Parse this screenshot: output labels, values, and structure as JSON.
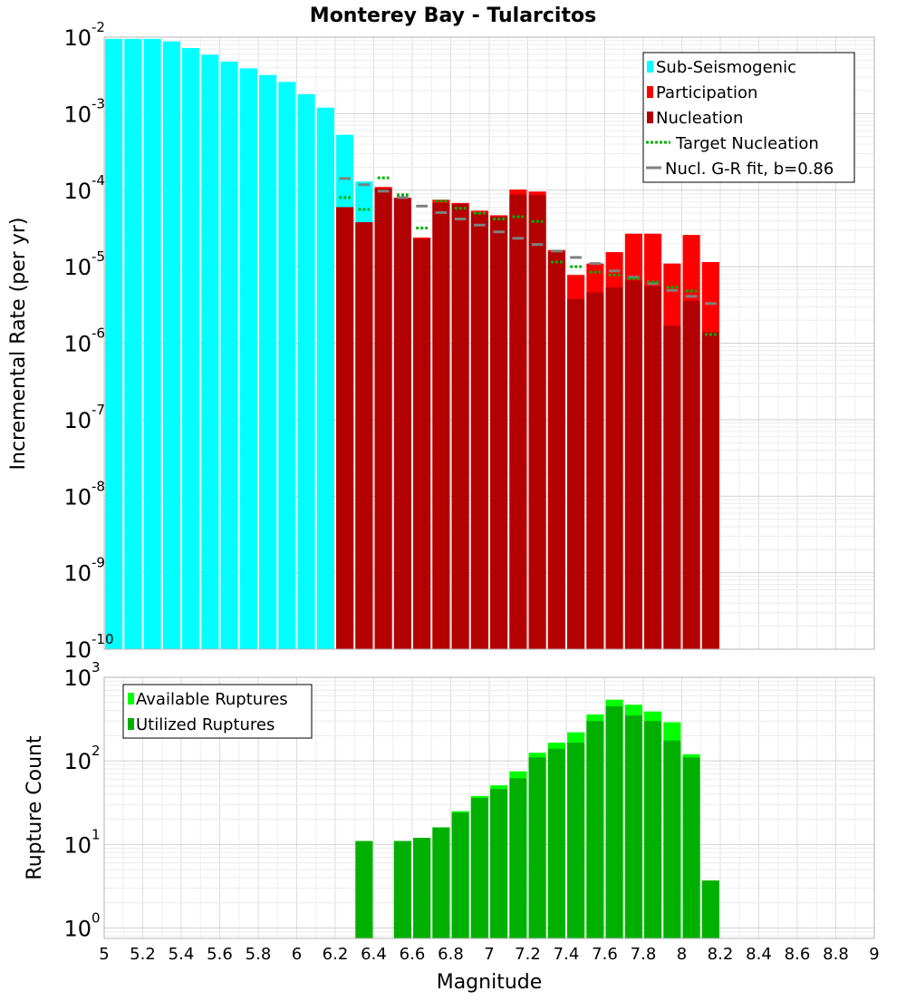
{
  "chart_data": [
    {
      "type": "bar",
      "title": "Monterey Bay - Tularcitos",
      "ylabel": "Incremental Rate (per yr)",
      "xlabel": "",
      "xlim": [
        5,
        9
      ],
      "yscale": "log",
      "ylim": [
        1e-10,
        0.01
      ],
      "bin_width": 0.1,
      "ytick_labels": [
        {
          "base": "10",
          "exp": "-10",
          "value": 1e-10
        },
        {
          "base": "10",
          "exp": "-9",
          "value": 1e-09
        },
        {
          "base": "10",
          "exp": "-8",
          "value": 1e-08
        },
        {
          "base": "10",
          "exp": "-7",
          "value": 1e-07
        },
        {
          "base": "10",
          "exp": "-6",
          "value": 1e-06
        },
        {
          "base": "10",
          "exp": "-5",
          "value": 1e-05
        },
        {
          "base": "10",
          "exp": "-4",
          "value": 0.0001
        },
        {
          "base": "10",
          "exp": "-3",
          "value": 0.001
        },
        {
          "base": "10",
          "exp": "-2",
          "value": 0.01
        }
      ],
      "legend": {
        "placement": "top-right",
        "entries": [
          {
            "label": "Sub-Seismogenic",
            "color": "#00ffff",
            "style": "box"
          },
          {
            "label": "Participation",
            "color": "#ff0000",
            "style": "box"
          },
          {
            "label": "Nucleation",
            "color": "#b30000",
            "style": "box"
          },
          {
            "label": "Target Nucleation",
            "color": "#00b000",
            "style": "dotted"
          },
          {
            "label": "Nucl. G-R fit, b=0.86",
            "color": "#808080",
            "style": "line"
          }
        ]
      },
      "series": [
        {
          "name": "Sub-Seismogenic",
          "color": "#00ffff",
          "x": [
            5.05,
            5.15,
            5.25,
            5.35,
            5.45,
            5.55,
            5.65,
            5.75,
            5.85,
            5.95,
            6.05,
            6.15,
            6.25,
            6.35
          ],
          "values": [
            0.0095,
            0.0095,
            0.0095,
            0.0088,
            0.0072,
            0.0059,
            0.0048,
            0.0039,
            0.0032,
            0.0026,
            0.0018,
            0.0012,
            0.00053,
            0.00013
          ]
        },
        {
          "name": "Participation",
          "color": "#ff0000",
          "x": [
            6.25,
            6.35,
            6.45,
            6.55,
            6.65,
            6.75,
            6.85,
            6.95,
            7.05,
            7.15,
            7.25,
            7.35,
            7.45,
            7.55,
            7.65,
            7.75,
            7.85,
            7.95,
            8.05,
            8.15
          ],
          "values": [
            6e-05,
            3.8e-05,
            0.00011,
            8e-05,
            2.4e-05,
            7.5e-05,
            6.8e-05,
            5.4e-05,
            4.7e-05,
            0.000102,
            9.6e-05,
            1.65e-05,
            7.8e-06,
            1.1e-05,
            1.55e-05,
            2.7e-05,
            2.7e-05,
            1.1e-05,
            2.6e-05,
            1.15e-05
          ]
        },
        {
          "name": "Nucleation",
          "color": "#b30000",
          "x": [
            6.25,
            6.35,
            6.45,
            6.55,
            6.65,
            6.75,
            6.85,
            6.95,
            7.05,
            7.15,
            7.25,
            7.35,
            7.45,
            7.55,
            7.65,
            7.75,
            7.85,
            7.95,
            8.05,
            8.15
          ],
          "values": [
            6e-05,
            3.8e-05,
            0.000105,
            7.8e-05,
            2.3e-05,
            6.8e-05,
            6.6e-05,
            5e-05,
            4.5e-05,
            8.8e-05,
            8.6e-05,
            1.55e-05,
            3.8e-06,
            4.6e-06,
            5.4e-06,
            6.6e-06,
            5.6e-06,
            1.7e-06,
            3.6e-06,
            1.4e-06
          ]
        },
        {
          "name": "Target Nucleation",
          "color": "#00b000",
          "x": [
            6.25,
            6.35,
            6.45,
            6.55,
            6.65,
            6.75,
            6.85,
            6.95,
            7.05,
            7.15,
            7.25,
            7.35,
            7.45,
            7.55,
            7.65,
            7.75,
            7.85,
            7.95,
            8.05,
            8.15
          ],
          "values": [
            8e-05,
            5.6e-05,
            0.000145,
            8.7e-05,
            3.2e-05,
            7.2e-05,
            5.8e-05,
            5e-05,
            4.2e-05,
            4.5e-05,
            3.9e-05,
            1.15e-05,
            1e-05,
            8.5e-06,
            7.8e-06,
            7e-06,
            6.3e-06,
            5.4e-06,
            4.8e-06,
            1.3e-06
          ]
        },
        {
          "name": "Nucl. G-R fit, b=0.86",
          "color": "#808080",
          "x": [
            6.25,
            6.35,
            6.45,
            6.55,
            6.65,
            6.75,
            6.85,
            6.95,
            7.05,
            7.15,
            7.25,
            7.35,
            7.45,
            7.55,
            7.65,
            7.75,
            7.85,
            7.95,
            8.05,
            8.15
          ],
          "values": [
            0.000142,
            0.000118,
            9.7e-05,
            8e-05,
            6.2e-05,
            5.1e-05,
            4.2e-05,
            3.5e-05,
            2.85e-05,
            2.35e-05,
            1.95e-05,
            1.6e-05,
            1.32e-05,
            1.1e-05,
            8.8e-06,
            7.3e-06,
            6e-06,
            4.9e-06,
            4.1e-06,
            3.3e-06
          ]
        }
      ]
    },
    {
      "type": "bar",
      "title": "",
      "ylabel": "Rupture Count",
      "xlabel": "Magnitude",
      "xlim": [
        5,
        9
      ],
      "yscale": "log",
      "ylim": [
        0.75,
        1000
      ],
      "bin_width": 0.1,
      "xtick_labels": [
        "5",
        "5.2",
        "5.4",
        "5.6",
        "5.8",
        "6",
        "6.2",
        "6.4",
        "6.6",
        "6.8",
        "7",
        "7.2",
        "7.4",
        "7.6",
        "7.8",
        "8",
        "8.2",
        "8.4",
        "8.6",
        "8.8",
        "9"
      ],
      "ytick_labels": [
        {
          "base": "10",
          "exp": "0",
          "value": 1
        },
        {
          "base": "10",
          "exp": "1",
          "value": 10
        },
        {
          "base": "10",
          "exp": "2",
          "value": 100
        },
        {
          "base": "10",
          "exp": "3",
          "value": 1000
        }
      ],
      "legend": {
        "placement": "top-left",
        "entries": [
          {
            "label": "Available Ruptures",
            "color": "#00ff00",
            "style": "box"
          },
          {
            "label": "Utilized Ruptures",
            "color": "#00b000",
            "style": "box"
          }
        ]
      },
      "series": [
        {
          "name": "Available Ruptures",
          "color": "#00ff00",
          "x": [
            6.35,
            6.55,
            6.65,
            6.75,
            6.85,
            6.95,
            7.05,
            7.15,
            7.25,
            7.35,
            7.45,
            7.55,
            7.65,
            7.75,
            7.85,
            7.95,
            8.05,
            8.15
          ],
          "values": [
            11,
            11,
            12,
            16,
            25,
            38,
            51,
            75,
            125,
            165,
            220,
            360,
            540,
            470,
            390,
            290,
            120,
            3.7
          ]
        },
        {
          "name": "Utilized Ruptures",
          "color": "#00b000",
          "x": [
            6.35,
            6.55,
            6.65,
            6.75,
            6.85,
            6.95,
            7.05,
            7.15,
            7.25,
            7.35,
            7.45,
            7.55,
            7.65,
            7.75,
            7.85,
            7.95,
            8.05,
            8.15
          ],
          "values": [
            11,
            11,
            12,
            16,
            24,
            36,
            46,
            62,
            110,
            140,
            165,
            300,
            450,
            350,
            300,
            175,
            110,
            3.7
          ]
        }
      ]
    }
  ]
}
